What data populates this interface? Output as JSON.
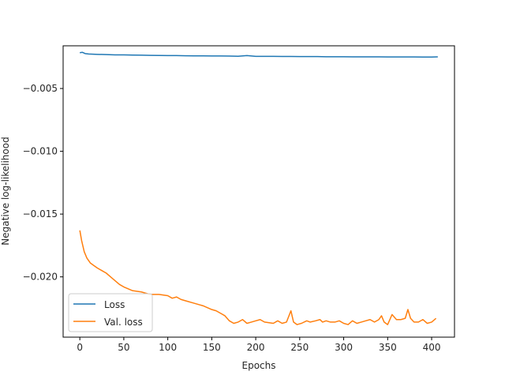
{
  "chart_data": {
    "type": "line",
    "title": "",
    "xlabel": "Epochs",
    "ylabel": "Negative log-likelihood",
    "xlim": [
      -19,
      426
    ],
    "ylim": [
      -0.0248,
      -0.0016
    ],
    "xticks": [
      0,
      50,
      100,
      150,
      200,
      250,
      300,
      350,
      400
    ],
    "xtick_labels": [
      "0",
      "50",
      "100",
      "150",
      "200",
      "250",
      "300",
      "350",
      "400"
    ],
    "yticks": [
      -0.005,
      -0.01,
      -0.015,
      -0.02
    ],
    "ytick_labels": [
      "−0.005",
      "−0.010",
      "−0.015",
      "−0.020"
    ],
    "grid": false,
    "legend_position": "lower-left",
    "series": [
      {
        "name": "Loss",
        "color": "#1f77b4",
        "x": [
          0,
          3,
          6,
          10,
          20,
          30,
          40,
          50,
          60,
          70,
          80,
          90,
          100,
          110,
          120,
          130,
          140,
          150,
          160,
          170,
          180,
          190,
          200,
          210,
          220,
          230,
          240,
          250,
          260,
          270,
          280,
          290,
          300,
          310,
          320,
          330,
          340,
          350,
          360,
          370,
          380,
          390,
          400,
          407
        ],
        "y": [
          -0.00215,
          -0.00212,
          -0.00222,
          -0.00225,
          -0.00228,
          -0.0023,
          -0.00232,
          -0.00232,
          -0.00234,
          -0.00235,
          -0.00236,
          -0.00237,
          -0.00238,
          -0.00238,
          -0.00239,
          -0.0024,
          -0.0024,
          -0.00241,
          -0.00241,
          -0.00242,
          -0.00243,
          -0.00238,
          -0.00244,
          -0.00244,
          -0.00244,
          -0.00245,
          -0.00245,
          -0.00246,
          -0.00246,
          -0.00246,
          -0.00247,
          -0.00247,
          -0.00247,
          -0.00248,
          -0.00248,
          -0.00248,
          -0.00248,
          -0.00249,
          -0.00249,
          -0.00249,
          -0.00249,
          -0.0025,
          -0.0025,
          -0.00248
        ]
      },
      {
        "name": "Val. loss",
        "color": "#ff7f0e",
        "x": [
          0,
          2,
          5,
          8,
          12,
          16,
          20,
          25,
          30,
          35,
          40,
          45,
          50,
          60,
          70,
          80,
          90,
          100,
          105,
          110,
          115,
          120,
          130,
          140,
          150,
          155,
          160,
          165,
          170,
          175,
          180,
          185,
          190,
          195,
          200,
          205,
          210,
          220,
          225,
          230,
          235,
          240,
          243,
          247,
          252,
          258,
          262,
          268,
          273,
          276,
          280,
          285,
          290,
          295,
          300,
          305,
          310,
          315,
          320,
          325,
          330,
          335,
          340,
          343,
          346,
          350,
          355,
          360,
          365,
          370,
          373,
          376,
          380,
          385,
          390,
          395,
          400,
          405
        ],
        "y": [
          -0.0163,
          -0.0171,
          -0.018,
          -0.0185,
          -0.0189,
          -0.0191,
          -0.0193,
          -0.0195,
          -0.0197,
          -0.02,
          -0.0203,
          -0.0206,
          -0.0208,
          -0.0211,
          -0.0212,
          -0.0214,
          -0.0214,
          -0.0215,
          -0.0217,
          -0.0216,
          -0.0218,
          -0.0219,
          -0.0221,
          -0.0223,
          -0.0226,
          -0.0227,
          -0.0229,
          -0.0231,
          -0.0235,
          -0.0237,
          -0.0236,
          -0.0234,
          -0.0237,
          -0.0236,
          -0.0235,
          -0.0234,
          -0.0236,
          -0.0237,
          -0.0235,
          -0.0237,
          -0.0236,
          -0.0227,
          -0.0236,
          -0.0238,
          -0.0237,
          -0.0235,
          -0.0236,
          -0.0235,
          -0.0234,
          -0.0236,
          -0.0235,
          -0.0236,
          -0.0236,
          -0.0235,
          -0.0237,
          -0.0238,
          -0.0235,
          -0.0237,
          -0.0236,
          -0.0235,
          -0.0234,
          -0.0236,
          -0.0234,
          -0.0231,
          -0.0236,
          -0.0238,
          -0.023,
          -0.0234,
          -0.0234,
          -0.0233,
          -0.0226,
          -0.0233,
          -0.0236,
          -0.0236,
          -0.0234,
          -0.0237,
          -0.0236,
          -0.0233
        ]
      }
    ]
  }
}
